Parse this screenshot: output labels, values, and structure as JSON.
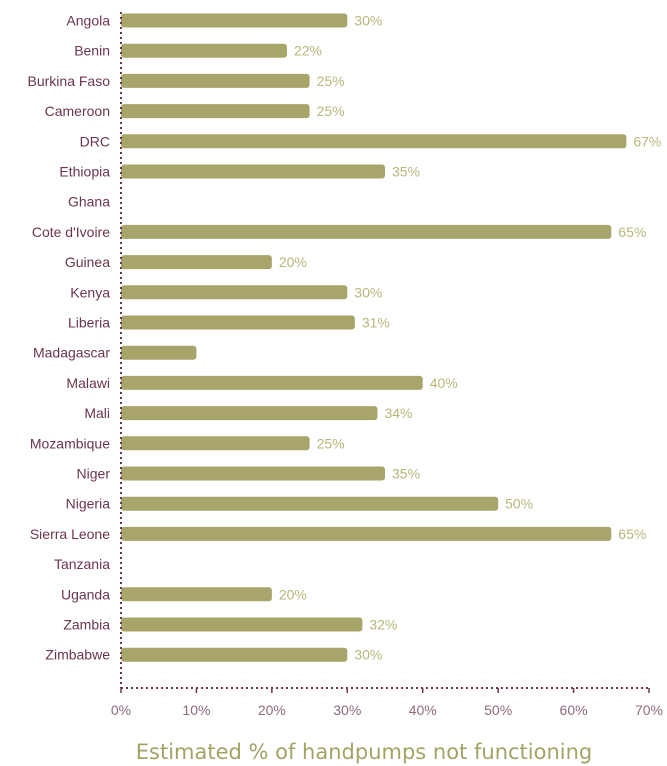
{
  "chart_data": {
    "type": "bar",
    "orientation": "horizontal",
    "title": "",
    "xlabel": "Estimated % of handpumps not functioning",
    "ylabel": "",
    "categories": [
      "Angola",
      "Benin",
      "Burkina Faso",
      "Cameroon",
      "DRC",
      "Ethiopia",
      "Ghana",
      "Cote d'Ivoire",
      "Guinea",
      "Kenya",
      "Liberia",
      "Madagascar",
      "Malawi",
      "Mali",
      "Mozambique",
      "Niger",
      "Nigeria",
      "Sierra Leone",
      "Tanzania",
      "Uganda",
      "Zambia",
      "Zimbabwe"
    ],
    "values": [
      30,
      22,
      25,
      25,
      67,
      35,
      null,
      65,
      20,
      30,
      31,
      10,
      40,
      34,
      25,
      35,
      50,
      65,
      null,
      20,
      32,
      30
    ],
    "value_labels": [
      "30%",
      "22%",
      "25%",
      "25%",
      "67%",
      "35%",
      "",
      "65%",
      "20%",
      "30%",
      "31%",
      "",
      "40%",
      "34%",
      "25%",
      "35%",
      "50%",
      "65%",
      "",
      "20%",
      "32%",
      "30%"
    ],
    "xlim": [
      0,
      70
    ],
    "x_ticks": [
      0,
      10,
      20,
      30,
      40,
      50,
      60,
      70
    ],
    "x_tick_labels": [
      "0%",
      "10%",
      "20%",
      "30%",
      "40%",
      "50%",
      "60%",
      "70%"
    ],
    "grid": false,
    "legend": "none"
  },
  "colors": {
    "bar": "#a7a56a",
    "axis": "#6b3552",
    "category_text": "#6b3552",
    "tick_text": "#8f6a7f",
    "value_text": "#b9b67a",
    "xlabel_text": "#a4a366"
  }
}
